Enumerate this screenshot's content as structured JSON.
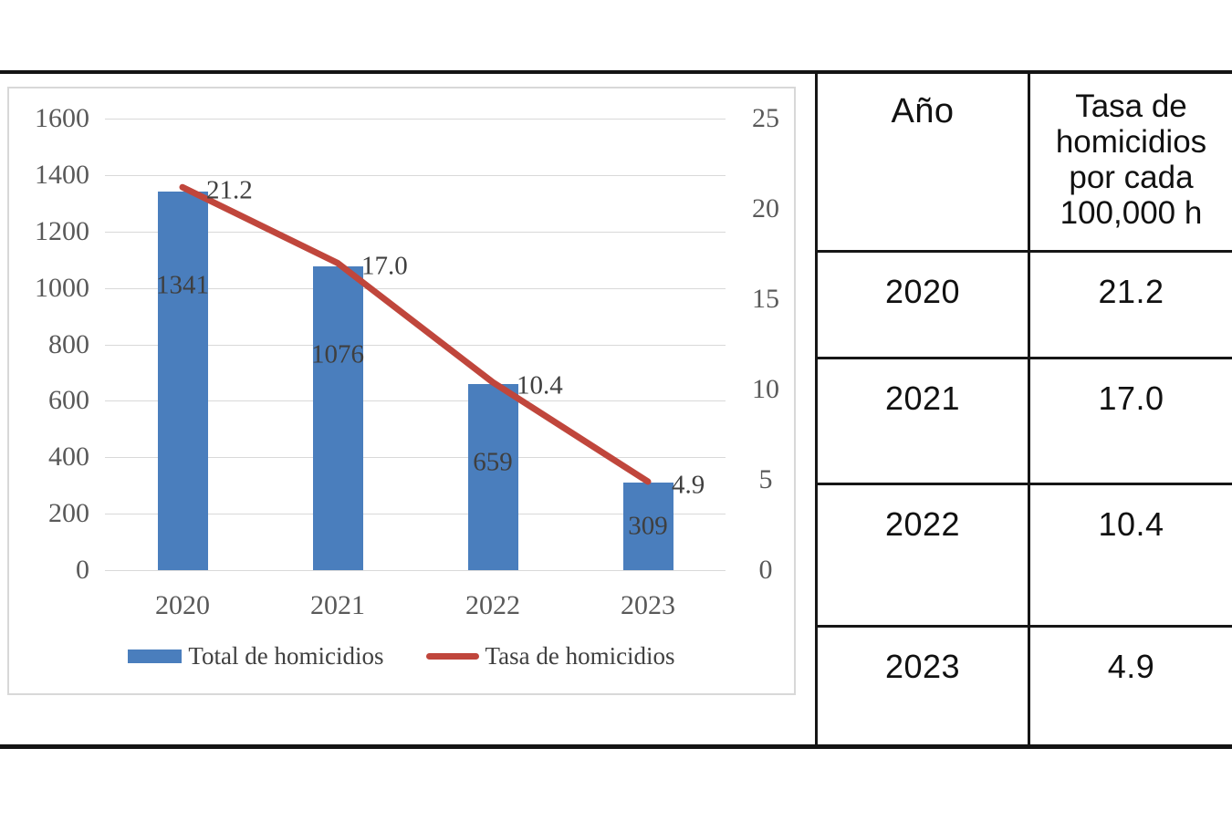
{
  "chart_data": {
    "type": "combo",
    "categories": [
      "2020",
      "2021",
      "2022",
      "2023"
    ],
    "series": [
      {
        "name": "Total de homicidios",
        "type": "bar",
        "axis": "left",
        "values": [
          1341,
          1076,
          659,
          309
        ],
        "labels": [
          "1341",
          "1076",
          "659",
          "309"
        ],
        "color": "#4a7ebd"
      },
      {
        "name": "Tasa de homicidios",
        "type": "line",
        "axis": "right",
        "values": [
          21.2,
          17.0,
          10.4,
          4.9
        ],
        "labels": [
          "21.2",
          "17.0",
          "10.4",
          "4.9"
        ],
        "color": "#c0463c"
      }
    ],
    "left_axis": {
      "min": 0,
      "max": 1600,
      "step": 200
    },
    "right_axis": {
      "min": 0,
      "max": 25,
      "step": 5
    },
    "grid": true,
    "legend_position": "bottom",
    "title": ""
  },
  "table": {
    "col1_header": "Año",
    "col2_header": "Tasa de\nhomicidios\npor cada\n100,000 h",
    "rows": [
      {
        "year": "2020",
        "rate": "21.2"
      },
      {
        "year": "2021",
        "rate": "17.0"
      },
      {
        "year": "2022",
        "rate": "10.4"
      },
      {
        "year": "2023",
        "rate": "4.9"
      }
    ]
  },
  "colors": {
    "bar": "#4a7ebd",
    "line": "#c0463c",
    "grid": "#d9d9d9",
    "axis_text": "#595959",
    "data_label_text": "#3f3f3f",
    "table_border": "#161616",
    "divider": "#141414",
    "panel_border": "#d8d8d8"
  }
}
